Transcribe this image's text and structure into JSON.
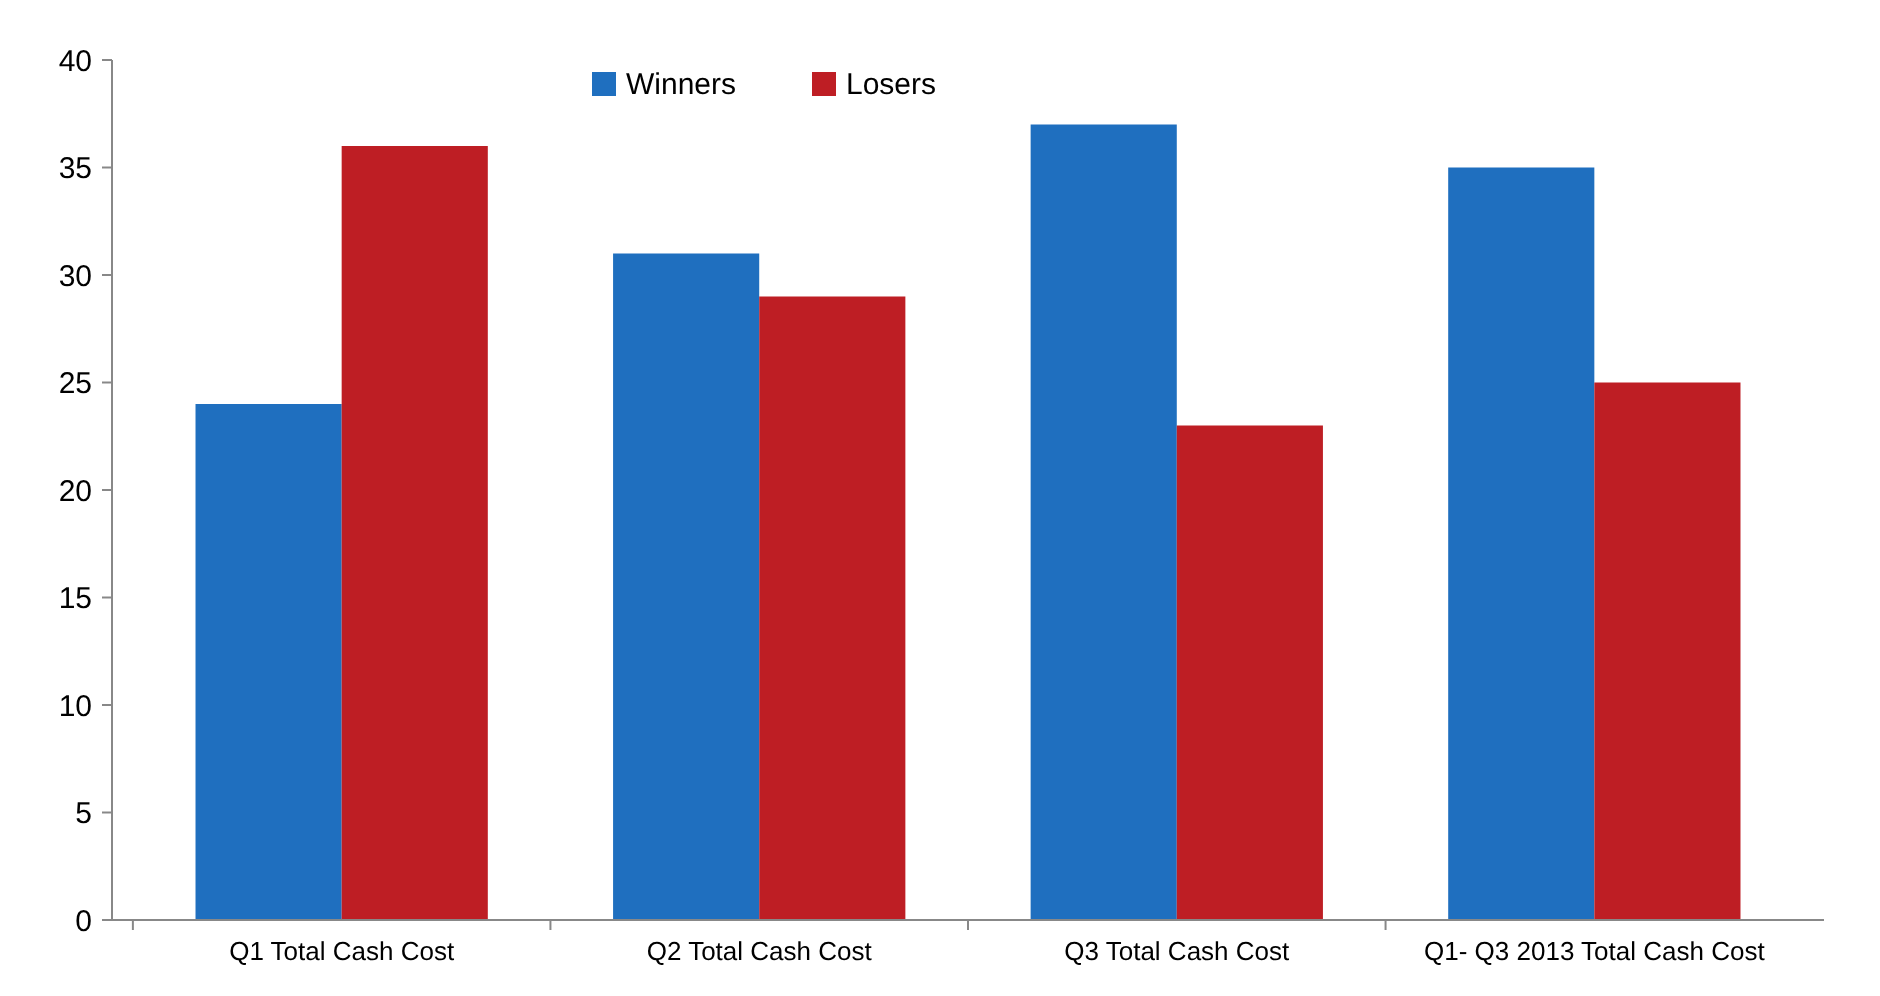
{
  "chart_data": {
    "type": "bar",
    "categories": [
      "Q1 Total Cash Cost",
      "Q2 Total Cash Cost",
      "Q3 Total Cash Cost",
      "Q1- Q3 2013 Total Cash Cost"
    ],
    "series": [
      {
        "name": "Winners",
        "color": "#1f6fbf",
        "values": [
          24,
          31,
          37,
          35
        ]
      },
      {
        "name": "Losers",
        "color": "#be1e24",
        "values": [
          36,
          29,
          23,
          25
        ]
      }
    ],
    "ylim": [
      0,
      40
    ],
    "yticks": [
      0,
      5,
      10,
      15,
      20,
      25,
      30,
      35,
      40
    ],
    "grid": false,
    "legend": "top"
  }
}
